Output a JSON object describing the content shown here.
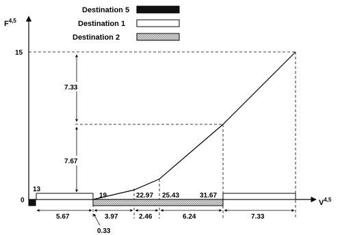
{
  "legend": {
    "items": [
      {
        "label": "Destination 5",
        "fill": "dark"
      },
      {
        "label": "Destination 1",
        "fill": "white"
      },
      {
        "label": "Destination 2",
        "fill": "gray"
      }
    ]
  },
  "axes": {
    "y_label": "F",
    "y_sup": "4,5",
    "x_label": "V",
    "x_sup": "4,5",
    "origin_label": "0",
    "y_tick_label": "15"
  },
  "colors": {
    "dark": "#111111",
    "gray_dots": "#9a9a9a"
  },
  "breakpoints": [
    "13",
    "19",
    "22.97",
    "25.43",
    "31.67"
  ],
  "vertical_measures": [
    "7.33",
    "7.67"
  ],
  "segment_lengths": [
    "5.67",
    "3.97",
    "2.46",
    "6.24",
    "7.33"
  ],
  "gap_label": "0.33"
}
